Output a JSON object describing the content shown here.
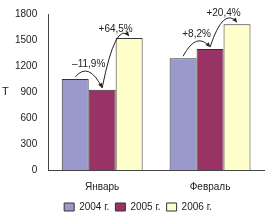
{
  "chart_data": {
    "type": "bar",
    "y_label": "Т",
    "categories": [
      "Январь",
      "Февраль"
    ],
    "series": [
      {
        "name": "2004 г.",
        "color": "#9999cc",
        "values": [
          1050,
          1290
        ]
      },
      {
        "name": "2005 г.",
        "color": "#993366",
        "values": [
          925,
          1396
        ]
      },
      {
        "name": "2006 г.",
        "color": "#ffffcc",
        "values": [
          1522,
          1681
        ]
      }
    ],
    "ylim": [
      0,
      1800
    ],
    "yticks": [
      0,
      300,
      600,
      900,
      1200,
      1500,
      1800
    ],
    "grid": false,
    "legend": "bottom",
    "annotations": [
      {
        "category": "Январь",
        "from": "2004 г.",
        "to": "2005 г.",
        "text": "–11,9%"
      },
      {
        "category": "Январь",
        "from": "2005 г.",
        "to": "2006 г.",
        "text": "+64,5%"
      },
      {
        "category": "Февраль",
        "from": "2004 г.",
        "to": "2005 г.",
        "text": "+8,2%"
      },
      {
        "category": "Февраль",
        "from": "2005 г.",
        "to": "2006 г.",
        "text": "+20,4%"
      }
    ]
  }
}
